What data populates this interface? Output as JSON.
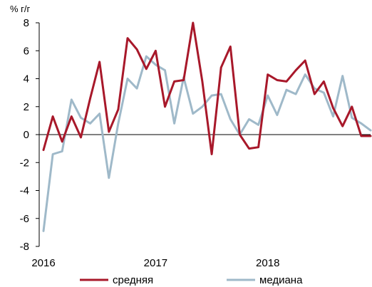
{
  "chart_data": {
    "type": "line",
    "title": "",
    "unit_label": "% г/г",
    "xlabel": "",
    "ylabel": "",
    "ylim": [
      -8,
      8
    ],
    "y_ticks": [
      8,
      6,
      4,
      2,
      0,
      -2,
      -4,
      -6,
      -8
    ],
    "x_ticks": [
      {
        "label": "2016",
        "index": 0
      },
      {
        "label": "2017",
        "index": 12
      },
      {
        "label": "2018",
        "index": 24
      }
    ],
    "grid": false,
    "legend_position": "bottom",
    "series": [
      {
        "name": "средняя",
        "color": "#a8182a",
        "values": [
          -1.1,
          1.3,
          -0.5,
          1.3,
          -0.2,
          2.6,
          5.2,
          0.2,
          1.8,
          6.9,
          6.1,
          4.7,
          6.0,
          2.0,
          3.8,
          3.9,
          8.0,
          3.8,
          -1.4,
          4.8,
          6.3,
          0.0,
          -1.0,
          -0.9,
          4.3,
          3.9,
          3.8,
          4.6,
          5.3,
          2.9,
          3.8,
          1.9,
          0.6,
          2.0,
          -0.1,
          -0.1
        ]
      },
      {
        "name": "медиана",
        "color": "#9fb9c9",
        "values": [
          -6.9,
          -1.4,
          -1.2,
          2.5,
          1.2,
          0.8,
          1.5,
          -3.1,
          0.8,
          4.0,
          3.3,
          5.6,
          5.0,
          4.6,
          0.8,
          4.1,
          1.5,
          2.0,
          2.8,
          2.9,
          1.1,
          0.0,
          1.1,
          0.7,
          2.8,
          1.4,
          3.2,
          2.9,
          4.3,
          3.3,
          3.0,
          1.3,
          4.2,
          1.2,
          0.8,
          0.3
        ]
      }
    ]
  }
}
